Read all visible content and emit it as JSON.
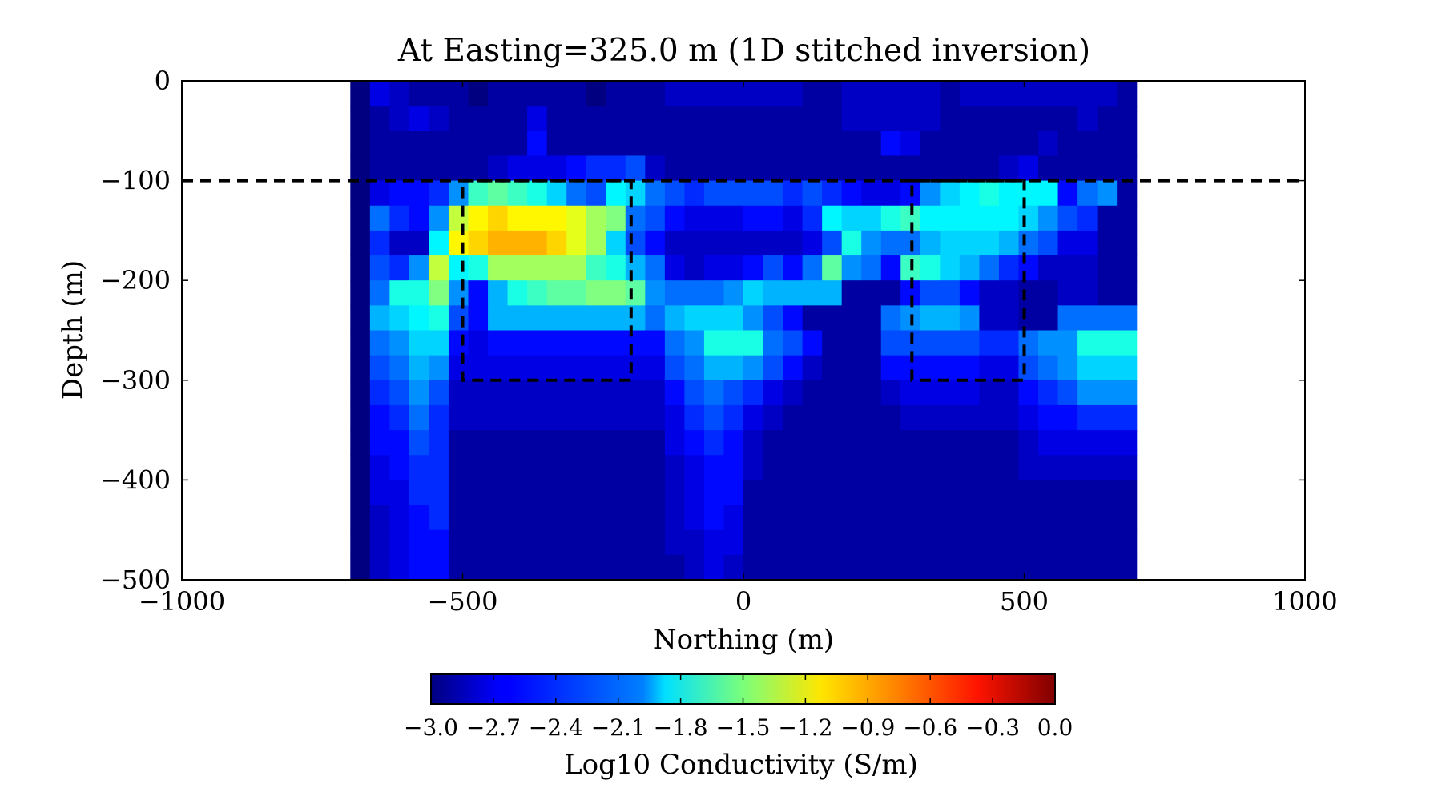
{
  "chart_data": {
    "type": "heatmap",
    "title": "At Easting=325.0 m (1D stitched inversion)",
    "xlabel": "Northing (m)",
    "ylabel": "Depth (m)",
    "xlim": [
      -1000,
      1000
    ],
    "ylim": [
      -500,
      0
    ],
    "xticks": [
      -1000,
      -500,
      0,
      500,
      1000
    ],
    "yticks": [
      0,
      -100,
      -200,
      -300,
      -400,
      -500
    ],
    "grid": false,
    "colormap": "jet",
    "value_range": [
      -3.0,
      0.0
    ],
    "colorbar": {
      "label": "Log10 Conductivity (S/m)",
      "ticks": [
        -3.0,
        -2.7,
        -2.4,
        -2.1,
        -1.8,
        -1.5,
        -1.2,
        -0.9,
        -0.6,
        -0.3,
        0.0
      ],
      "placement": "bottom"
    },
    "x_columns": [
      -700,
      -665,
      -630,
      -595,
      -560,
      -525,
      -490,
      -455,
      -420,
      -385,
      -350,
      -315,
      -280,
      -245,
      -210,
      -175,
      -140,
      -105,
      -70,
      -35,
      0,
      35,
      70,
      105,
      140,
      175,
      210,
      245,
      280,
      315,
      350,
      385,
      420,
      455,
      490,
      525,
      560,
      595,
      630,
      665,
      700
    ],
    "depth_rows": [
      0,
      -25,
      -50,
      -75,
      -100,
      -125,
      -150,
      -175,
      -200,
      -225,
      -250,
      -275,
      -300,
      -325,
      -350,
      -375,
      -400,
      -425,
      -450,
      -475,
      -500
    ],
    "grid_values": [
      [
        -3.0,
        -2.7,
        -2.8,
        -2.9,
        -2.9,
        -2.9,
        -3.0,
        -2.9,
        -2.9,
        -2.9,
        -2.9,
        -2.9,
        -3.0,
        -2.9,
        -2.9,
        -2.9,
        -2.8,
        -2.8,
        -2.8,
        -2.8,
        -2.8,
        -2.8,
        -2.8,
        -2.9,
        -2.9,
        -2.8,
        -2.8,
        -2.8,
        -2.8,
        -2.8,
        -2.9,
        -2.8,
        -2.8,
        -2.8,
        -2.8,
        -2.8,
        -2.8,
        -2.8,
        -2.8,
        -2.9
      ],
      [
        -3.0,
        -2.9,
        -2.8,
        -2.7,
        -2.8,
        -2.9,
        -2.9,
        -2.9,
        -2.9,
        -2.7,
        -2.9,
        -2.9,
        -2.9,
        -2.9,
        -2.9,
        -2.9,
        -2.9,
        -2.9,
        -2.9,
        -2.9,
        -2.9,
        -2.9,
        -2.9,
        -2.9,
        -2.9,
        -2.8,
        -2.8,
        -2.8,
        -2.8,
        -2.8,
        -2.9,
        -2.9,
        -2.9,
        -2.9,
        -2.9,
        -2.9,
        -2.9,
        -2.8,
        -2.9,
        -2.9
      ],
      [
        -3.0,
        -2.9,
        -2.9,
        -2.9,
        -2.9,
        -2.9,
        -2.9,
        -2.9,
        -2.9,
        -2.6,
        -2.9,
        -2.9,
        -2.9,
        -2.9,
        -2.9,
        -2.9,
        -2.9,
        -2.9,
        -2.9,
        -2.9,
        -2.9,
        -2.9,
        -2.9,
        -2.9,
        -2.9,
        -2.9,
        -2.9,
        -2.6,
        -2.7,
        -2.9,
        -2.9,
        -2.9,
        -2.9,
        -2.9,
        -2.9,
        -2.8,
        -2.9,
        -2.9,
        -2.9,
        -2.9
      ],
      [
        -3.0,
        -2.9,
        -2.9,
        -2.9,
        -2.9,
        -2.9,
        -2.9,
        -2.8,
        -2.7,
        -2.7,
        -2.7,
        -2.6,
        -2.5,
        -2.5,
        -2.4,
        -2.8,
        -2.9,
        -2.9,
        -2.9,
        -2.9,
        -2.9,
        -2.9,
        -2.9,
        -2.9,
        -2.9,
        -2.9,
        -2.9,
        -2.9,
        -2.9,
        -2.9,
        -2.9,
        -2.9,
        -2.9,
        -2.8,
        -2.7,
        -2.9,
        -2.9,
        -2.9,
        -2.9,
        -2.9
      ],
      [
        -3.0,
        -2.7,
        -2.6,
        -2.6,
        -2.5,
        -2.2,
        -1.7,
        -1.6,
        -1.7,
        -1.8,
        -2.0,
        -2.3,
        -2.4,
        -1.9,
        -2.0,
        -2.3,
        -2.4,
        -2.5,
        -2.4,
        -2.4,
        -2.4,
        -2.4,
        -2.5,
        -2.4,
        -2.5,
        -2.6,
        -2.7,
        -2.7,
        -2.6,
        -2.2,
        -2.0,
        -1.9,
        -1.8,
        -1.9,
        -1.9,
        -1.9,
        -2.6,
        -2.3,
        -2.2,
        -2.9
      ],
      [
        -3.0,
        -2.3,
        -2.5,
        -2.6,
        -2.2,
        -1.3,
        -1.1,
        -1.0,
        -1.1,
        -1.1,
        -1.1,
        -1.2,
        -1.4,
        -1.5,
        -2.3,
        -2.4,
        -2.6,
        -2.7,
        -2.7,
        -2.7,
        -2.6,
        -2.6,
        -2.7,
        -2.5,
        -1.9,
        -2.0,
        -2.0,
        -1.8,
        -1.7,
        -1.9,
        -1.9,
        -1.9,
        -1.9,
        -1.9,
        -2.0,
        -2.2,
        -2.4,
        -2.5,
        -2.9,
        -2.9
      ],
      [
        -3.0,
        -2.5,
        -2.8,
        -2.8,
        -1.9,
        -1.1,
        -1.0,
        -0.9,
        -0.9,
        -0.9,
        -1.0,
        -1.2,
        -1.4,
        -2.0,
        -2.4,
        -2.6,
        -2.8,
        -2.8,
        -2.8,
        -2.8,
        -2.8,
        -2.8,
        -2.8,
        -2.7,
        -2.4,
        -1.8,
        -2.2,
        -2.3,
        -2.3,
        -2.1,
        -2.0,
        -2.0,
        -2.0,
        -2.1,
        -2.3,
        -2.4,
        -2.7,
        -2.7,
        -2.9,
        -2.9
      ],
      [
        -3.0,
        -2.4,
        -2.5,
        -2.2,
        -1.3,
        -1.9,
        -1.8,
        -1.4,
        -1.4,
        -1.4,
        -1.4,
        -1.4,
        -1.7,
        -1.8,
        -2.1,
        -2.3,
        -2.7,
        -2.8,
        -2.7,
        -2.7,
        -2.6,
        -2.4,
        -2.6,
        -2.3,
        -1.6,
        -2.2,
        -2.3,
        -2.6,
        -1.7,
        -1.8,
        -2.0,
        -2.1,
        -2.3,
        -2.5,
        -2.6,
        -2.8,
        -2.8,
        -2.8,
        -2.9,
        -2.9
      ],
      [
        -3.0,
        -2.3,
        -1.8,
        -1.8,
        -1.5,
        -2.2,
        -2.6,
        -2.1,
        -1.8,
        -1.7,
        -1.6,
        -1.6,
        -1.5,
        -1.5,
        -1.6,
        -2.2,
        -2.3,
        -2.3,
        -2.3,
        -2.2,
        -2.0,
        -2.1,
        -2.1,
        -2.1,
        -2.1,
        -2.9,
        -2.9,
        -2.9,
        -2.6,
        -2.4,
        -2.4,
        -2.6,
        -2.8,
        -2.8,
        -2.9,
        -2.9,
        -2.8,
        -2.8,
        -2.9,
        -2.9
      ],
      [
        -3.0,
        -2.1,
        -2.0,
        -1.9,
        -1.8,
        -2.4,
        -2.6,
        -2.1,
        -2.1,
        -2.1,
        -2.1,
        -2.1,
        -2.1,
        -2.1,
        -2.1,
        -2.3,
        -2.1,
        -2.0,
        -2.0,
        -2.0,
        -2.2,
        -2.4,
        -2.6,
        -2.9,
        -2.9,
        -2.9,
        -2.9,
        -2.3,
        -2.2,
        -2.1,
        -2.1,
        -2.2,
        -2.8,
        -2.8,
        -2.9,
        -2.9,
        -2.3,
        -2.3,
        -2.3,
        -2.3
      ],
      [
        -3.0,
        -2.3,
        -2.2,
        -2.0,
        -2.0,
        -2.6,
        -2.7,
        -2.6,
        -2.6,
        -2.6,
        -2.6,
        -2.6,
        -2.6,
        -2.6,
        -2.6,
        -2.6,
        -2.3,
        -2.2,
        -1.8,
        -1.8,
        -1.8,
        -2.3,
        -2.4,
        -2.6,
        -2.9,
        -2.9,
        -2.9,
        -2.4,
        -2.4,
        -2.4,
        -2.4,
        -2.4,
        -2.5,
        -2.5,
        -2.3,
        -2.2,
        -2.2,
        -1.8,
        -1.8,
        -1.8
      ],
      [
        -3.0,
        -2.4,
        -2.3,
        -2.1,
        -2.2,
        -2.7,
        -2.7,
        -2.7,
        -2.7,
        -2.7,
        -2.7,
        -2.7,
        -2.7,
        -2.7,
        -2.7,
        -2.7,
        -2.4,
        -2.3,
        -2.1,
        -2.1,
        -2.2,
        -2.4,
        -2.6,
        -2.8,
        -2.9,
        -2.9,
        -2.9,
        -2.6,
        -2.6,
        -2.6,
        -2.6,
        -2.6,
        -2.7,
        -2.7,
        -2.4,
        -2.3,
        -2.2,
        -2.0,
        -2.0,
        -2.0
      ],
      [
        -3.0,
        -2.5,
        -2.4,
        -2.2,
        -2.4,
        -2.8,
        -2.8,
        -2.8,
        -2.8,
        -2.8,
        -2.8,
        -2.8,
        -2.8,
        -2.8,
        -2.8,
        -2.8,
        -2.6,
        -2.4,
        -2.3,
        -2.4,
        -2.5,
        -2.7,
        -2.8,
        -2.9,
        -2.9,
        -2.9,
        -2.9,
        -2.8,
        -2.7,
        -2.7,
        -2.7,
        -2.7,
        -2.8,
        -2.8,
        -2.6,
        -2.5,
        -2.4,
        -2.2,
        -2.2,
        -2.2
      ],
      [
        -3.0,
        -2.6,
        -2.5,
        -2.3,
        -2.5,
        -2.8,
        -2.8,
        -2.8,
        -2.8,
        -2.8,
        -2.8,
        -2.8,
        -2.8,
        -2.8,
        -2.8,
        -2.8,
        -2.7,
        -2.5,
        -2.4,
        -2.5,
        -2.7,
        -2.8,
        -2.9,
        -2.9,
        -2.9,
        -2.9,
        -2.9,
        -2.9,
        -2.8,
        -2.8,
        -2.8,
        -2.8,
        -2.8,
        -2.8,
        -2.7,
        -2.6,
        -2.6,
        -2.5,
        -2.5,
        -2.5
      ],
      [
        -3.0,
        -2.6,
        -2.6,
        -2.4,
        -2.5,
        -2.9,
        -2.9,
        -2.9,
        -2.9,
        -2.9,
        -2.9,
        -2.9,
        -2.9,
        -2.9,
        -2.9,
        -2.9,
        -2.7,
        -2.6,
        -2.5,
        -2.6,
        -2.8,
        -2.9,
        -2.9,
        -2.9,
        -2.9,
        -2.9,
        -2.9,
        -2.9,
        -2.9,
        -2.9,
        -2.9,
        -2.9,
        -2.9,
        -2.9,
        -2.8,
        -2.7,
        -2.7,
        -2.7,
        -2.7,
        -2.7
      ],
      [
        -3.0,
        -2.7,
        -2.6,
        -2.5,
        -2.5,
        -2.9,
        -2.9,
        -2.9,
        -2.9,
        -2.9,
        -2.9,
        -2.9,
        -2.9,
        -2.9,
        -2.9,
        -2.9,
        -2.8,
        -2.7,
        -2.6,
        -2.6,
        -2.8,
        -2.9,
        -2.9,
        -2.9,
        -2.9,
        -2.9,
        -2.9,
        -2.9,
        -2.9,
        -2.9,
        -2.9,
        -2.9,
        -2.9,
        -2.9,
        -2.8,
        -2.8,
        -2.8,
        -2.8,
        -2.8,
        -2.8
      ],
      [
        -3.0,
        -2.7,
        -2.7,
        -2.5,
        -2.5,
        -2.9,
        -2.9,
        -2.9,
        -2.9,
        -2.9,
        -2.9,
        -2.9,
        -2.9,
        -2.9,
        -2.9,
        -2.9,
        -2.8,
        -2.7,
        -2.6,
        -2.6,
        -2.9,
        -2.9,
        -2.9,
        -2.9,
        -2.9,
        -2.9,
        -2.9,
        -2.9,
        -2.9,
        -2.9,
        -2.9,
        -2.9,
        -2.9,
        -2.9,
        -2.9,
        -2.9,
        -2.9,
        -2.9,
        -2.9,
        -2.9
      ],
      [
        -3.0,
        -2.8,
        -2.7,
        -2.6,
        -2.5,
        -2.9,
        -2.9,
        -2.9,
        -2.9,
        -2.9,
        -2.9,
        -2.9,
        -2.9,
        -2.9,
        -2.9,
        -2.9,
        -2.8,
        -2.7,
        -2.6,
        -2.7,
        -2.9,
        -2.9,
        -2.9,
        -2.9,
        -2.9,
        -2.9,
        -2.9,
        -2.9,
        -2.9,
        -2.9,
        -2.9,
        -2.9,
        -2.9,
        -2.9,
        -2.9,
        -2.9,
        -2.9,
        -2.9,
        -2.9,
        -2.9
      ],
      [
        -3.0,
        -2.8,
        -2.7,
        -2.6,
        -2.6,
        -2.9,
        -2.9,
        -2.9,
        -2.9,
        -2.9,
        -2.9,
        -2.9,
        -2.9,
        -2.9,
        -2.9,
        -2.9,
        -2.8,
        -2.8,
        -2.7,
        -2.7,
        -2.9,
        -2.9,
        -2.9,
        -2.9,
        -2.9,
        -2.9,
        -2.9,
        -2.9,
        -2.9,
        -2.9,
        -2.9,
        -2.9,
        -2.9,
        -2.9,
        -2.9,
        -2.9,
        -2.9,
        -2.9,
        -2.9,
        -2.9
      ],
      [
        -3.0,
        -2.8,
        -2.7,
        -2.6,
        -2.6,
        -2.9,
        -2.9,
        -2.9,
        -2.9,
        -2.9,
        -2.9,
        -2.9,
        -2.9,
        -2.9,
        -2.9,
        -2.9,
        -2.9,
        -2.8,
        -2.7,
        -2.8,
        -2.9,
        -2.9,
        -2.9,
        -2.9,
        -2.9,
        -2.9,
        -2.9,
        -2.9,
        -2.9,
        -2.9,
        -2.9,
        -2.9,
        -2.9,
        -2.9,
        -2.9,
        -2.9,
        -2.9,
        -2.9,
        -2.9,
        -2.9
      ]
    ],
    "reference_lines": [
      {
        "type": "horizontal",
        "y": -100,
        "style": "dashed"
      },
      {
        "type": "rectangle",
        "x": [
          -500,
          -200
        ],
        "y": [
          -300,
          -100
        ],
        "style": "dashed"
      },
      {
        "type": "rectangle",
        "x": [
          300,
          500
        ],
        "y": [
          -300,
          -100
        ],
        "style": "dashed"
      }
    ]
  }
}
